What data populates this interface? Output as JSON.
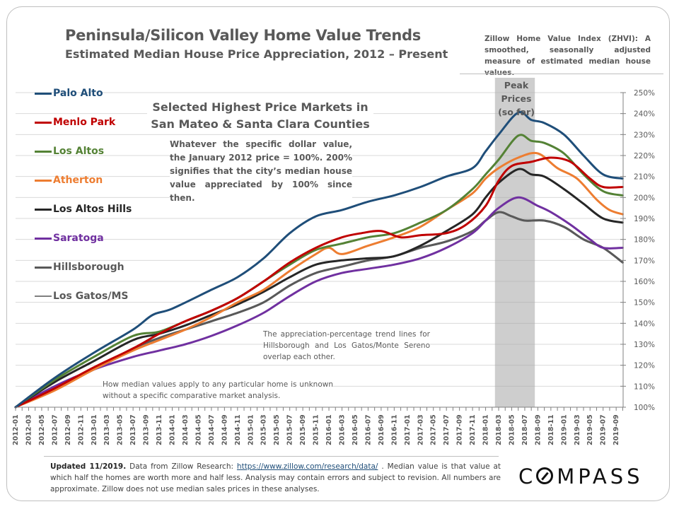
{
  "header": {
    "title": "Peninsula/Silicon Valley Home Value Trends",
    "subtitle": "Estimated Median House Price Appreciation, 2012 – Present",
    "zhvi_note": "Zillow Home Value Index (ZHVI): A smoothed, seasonally adjusted measure of estimated median house values."
  },
  "annotations": {
    "box_title": "Selected Highest Price Markets in San Mateo & Santa Clara Counties",
    "box_body": "Whatever the specific dollar value, the January 2012 price = 100%. 200% signifies that the city’s median house value appreciated by 100% since then.",
    "overlap_note": "The appreciation-percentage trend lines for Hillsborough and Los Gatos/Monte Sereno overlap each other.",
    "median_note": "How median values apply to any particular home is unknown without a specific comparative market analysis.",
    "peak_label_line1": "Peak Prices",
    "peak_label_line2": "(so far)"
  },
  "footer": {
    "updated": "Updated 11/2019.",
    "source_prefix": " Data from Zillow Research: ",
    "source_link": "https://www.zillow.com/research/data/",
    "source_suffix": " . Median value is that value at which half the homes are worth more and half less. Analysis may contain errors and subject to revision. All numbers are approximate. Zillow does not use median sales prices in these analyses.",
    "logo": "COMPASS"
  },
  "chart_data": {
    "type": "line",
    "title": "Peninsula/Silicon Valley Home Value Trends",
    "subtitle": "Estimated Median House Price Appreciation, 2012 – Present",
    "xlabel": "",
    "ylabel": "",
    "ylim": [
      100,
      250
    ],
    "yticks": [
      "100%",
      "110%",
      "120%",
      "130%",
      "140%",
      "150%",
      "160%",
      "170%",
      "180%",
      "190%",
      "200%",
      "210%",
      "220%",
      "230%",
      "240%",
      "250%"
    ],
    "y_axis_side": "right",
    "grid": true,
    "legend_position": "left",
    "x_start": "2012-01",
    "x_end": "2019-10",
    "xtick_labels": [
      "2012-01",
      "2012-03",
      "2012-05",
      "2012-07",
      "2012-09",
      "2012-11",
      "2013-01",
      "2013-03",
      "2013-05",
      "2013-07",
      "2013-09",
      "2013-11",
      "2014-01",
      "2014-03",
      "2014-05",
      "2014-07",
      "2014-09",
      "2014-11",
      "2015-01",
      "2015-03",
      "2015-05",
      "2015-07",
      "2015-09",
      "2015-11",
      "2016-01",
      "2016-03",
      "2016-05",
      "2016-07",
      "2016-09",
      "2016-11",
      "2017-01",
      "2017-03",
      "2017-05",
      "2017-07",
      "2017-09",
      "2017-11",
      "2018-01",
      "2018-03",
      "2018-05",
      "2018-07",
      "2018-09",
      "2018-11",
      "2019-01",
      "2019-03",
      "2019-05",
      "2019-07",
      "2019-09"
    ],
    "shaded_region": {
      "label": "Peak Prices (so far)",
      "from": "2018-02",
      "to": "2018-08",
      "color": "#a6a6a6"
    },
    "series": [
      {
        "name": "Palo Alto",
        "color": "#1f4e79",
        "points": [
          [
            "2012-01",
            100
          ],
          [
            "2012-07",
            114
          ],
          [
            "2013-01",
            126
          ],
          [
            "2013-07",
            137
          ],
          [
            "2013-10",
            144
          ],
          [
            "2014-01",
            147
          ],
          [
            "2014-07",
            156
          ],
          [
            "2014-11",
            162
          ],
          [
            "2015-03",
            171
          ],
          [
            "2015-07",
            183
          ],
          [
            "2015-11",
            191
          ],
          [
            "2016-03",
            194
          ],
          [
            "2016-07",
            198
          ],
          [
            "2016-11",
            201
          ],
          [
            "2017-03",
            205
          ],
          [
            "2017-07",
            210
          ],
          [
            "2017-11",
            214
          ],
          [
            "2018-01",
            222
          ],
          [
            "2018-03",
            230
          ],
          [
            "2018-06",
            240.5
          ],
          [
            "2018-08",
            237
          ],
          [
            "2018-10",
            235.5
          ],
          [
            "2019-01",
            230
          ],
          [
            "2019-04",
            220
          ],
          [
            "2019-07",
            211
          ],
          [
            "2019-10",
            209
          ]
        ]
      },
      {
        "name": "Menlo Park",
        "color": "#c00000",
        "points": [
          [
            "2012-01",
            100
          ],
          [
            "2012-07",
            109
          ],
          [
            "2013-01",
            119
          ],
          [
            "2013-07",
            128
          ],
          [
            "2013-11",
            135
          ],
          [
            "2014-03",
            141
          ],
          [
            "2014-07",
            146
          ],
          [
            "2014-11",
            152
          ],
          [
            "2015-03",
            160
          ],
          [
            "2015-07",
            169
          ],
          [
            "2015-11",
            176
          ],
          [
            "2016-03",
            181
          ],
          [
            "2016-06",
            183
          ],
          [
            "2016-09",
            184
          ],
          [
            "2016-12",
            181
          ],
          [
            "2017-03",
            182
          ],
          [
            "2017-07",
            183
          ],
          [
            "2017-10",
            187
          ],
          [
            "2018-01",
            196
          ],
          [
            "2018-03",
            208
          ],
          [
            "2018-05",
            215
          ],
          [
            "2018-08",
            217
          ],
          [
            "2018-11",
            219
          ],
          [
            "2019-02",
            217
          ],
          [
            "2019-05",
            209
          ],
          [
            "2019-07",
            205
          ],
          [
            "2019-10",
            205
          ]
        ]
      },
      {
        "name": "Los Altos",
        "color": "#548235",
        "points": [
          [
            "2012-01",
            100
          ],
          [
            "2012-07",
            113
          ],
          [
            "2013-01",
            124
          ],
          [
            "2013-07",
            134
          ],
          [
            "2013-11",
            136
          ],
          [
            "2014-03",
            141
          ],
          [
            "2014-07",
            146
          ],
          [
            "2014-11",
            152
          ],
          [
            "2015-03",
            160
          ],
          [
            "2015-07",
            168
          ],
          [
            "2015-11",
            175
          ],
          [
            "2016-03",
            178
          ],
          [
            "2016-07",
            181
          ],
          [
            "2016-11",
            183
          ],
          [
            "2017-03",
            188
          ],
          [
            "2017-07",
            194
          ],
          [
            "2017-11",
            204
          ],
          [
            "2018-01",
            211
          ],
          [
            "2018-03",
            218
          ],
          [
            "2018-06",
            229.5
          ],
          [
            "2018-08",
            227
          ],
          [
            "2018-10",
            226
          ],
          [
            "2019-01",
            221
          ],
          [
            "2019-04",
            211
          ],
          [
            "2019-07",
            203
          ],
          [
            "2019-10",
            201
          ]
        ]
      },
      {
        "name": "Atherton",
        "color": "#ed7d31",
        "points": [
          [
            "2012-01",
            100
          ],
          [
            "2012-07",
            108
          ],
          [
            "2013-01",
            118
          ],
          [
            "2013-07",
            127
          ],
          [
            "2013-11",
            132
          ],
          [
            "2014-03",
            137
          ],
          [
            "2014-07",
            143
          ],
          [
            "2014-11",
            150
          ],
          [
            "2015-03",
            156
          ],
          [
            "2015-07",
            165
          ],
          [
            "2015-11",
            173
          ],
          [
            "2016-01",
            176
          ],
          [
            "2016-03",
            173
          ],
          [
            "2016-07",
            177
          ],
          [
            "2016-11",
            181
          ],
          [
            "2017-03",
            186
          ],
          [
            "2017-07",
            194
          ],
          [
            "2017-11",
            202
          ],
          [
            "2018-01",
            209
          ],
          [
            "2018-03",
            214
          ],
          [
            "2018-06",
            219
          ],
          [
            "2018-09",
            221
          ],
          [
            "2018-12",
            214
          ],
          [
            "2019-03",
            209
          ],
          [
            "2019-06",
            199
          ],
          [
            "2019-08",
            194
          ],
          [
            "2019-10",
            192
          ]
        ]
      },
      {
        "name": "Los Altos Hills",
        "color": "#262626",
        "points": [
          [
            "2012-01",
            100
          ],
          [
            "2012-07",
            112
          ],
          [
            "2013-01",
            122
          ],
          [
            "2013-07",
            132
          ],
          [
            "2013-11",
            135
          ],
          [
            "2014-03",
            139
          ],
          [
            "2014-07",
            144
          ],
          [
            "2014-11",
            149
          ],
          [
            "2015-03",
            155
          ],
          [
            "2015-07",
            162
          ],
          [
            "2015-11",
            168
          ],
          [
            "2016-03",
            170
          ],
          [
            "2016-07",
            171
          ],
          [
            "2016-11",
            172
          ],
          [
            "2017-03",
            177
          ],
          [
            "2017-07",
            184
          ],
          [
            "2017-11",
            192
          ],
          [
            "2018-01",
            200
          ],
          [
            "2018-03",
            207
          ],
          [
            "2018-06",
            213.5
          ],
          [
            "2018-08",
            211
          ],
          [
            "2018-10",
            210
          ],
          [
            "2019-01",
            204
          ],
          [
            "2019-04",
            197
          ],
          [
            "2019-07",
            190
          ],
          [
            "2019-10",
            188
          ]
        ]
      },
      {
        "name": "Saratoga",
        "color": "#7030a0",
        "points": [
          [
            "2012-01",
            100
          ],
          [
            "2012-07",
            110
          ],
          [
            "2013-01",
            118
          ],
          [
            "2013-07",
            124
          ],
          [
            "2013-11",
            127
          ],
          [
            "2014-03",
            130
          ],
          [
            "2014-07",
            134
          ],
          [
            "2014-11",
            139
          ],
          [
            "2015-03",
            145
          ],
          [
            "2015-07",
            153
          ],
          [
            "2015-11",
            160
          ],
          [
            "2016-03",
            164
          ],
          [
            "2016-07",
            166
          ],
          [
            "2016-11",
            168
          ],
          [
            "2017-03",
            171
          ],
          [
            "2017-07",
            176
          ],
          [
            "2017-11",
            183
          ],
          [
            "2018-01",
            189
          ],
          [
            "2018-03",
            195
          ],
          [
            "2018-06",
            200
          ],
          [
            "2018-09",
            196
          ],
          [
            "2018-11",
            193
          ],
          [
            "2019-02",
            187
          ],
          [
            "2019-05",
            180
          ],
          [
            "2019-07",
            176
          ],
          [
            "2019-10",
            176
          ]
        ]
      },
      {
        "name": "Hillsborough",
        "color": "#595959",
        "points": [
          [
            "2012-01",
            100
          ],
          [
            "2012-07",
            109
          ],
          [
            "2013-01",
            118
          ],
          [
            "2013-07",
            128
          ],
          [
            "2013-11",
            133
          ],
          [
            "2014-03",
            137
          ],
          [
            "2014-07",
            141
          ],
          [
            "2014-11",
            145
          ],
          [
            "2015-03",
            150
          ],
          [
            "2015-07",
            158
          ],
          [
            "2015-11",
            164
          ],
          [
            "2016-03",
            167
          ],
          [
            "2016-07",
            170
          ],
          [
            "2016-11",
            172
          ],
          [
            "2017-03",
            176
          ],
          [
            "2017-07",
            179
          ],
          [
            "2017-11",
            184
          ],
          [
            "2018-01",
            189
          ],
          [
            "2018-03",
            193
          ],
          [
            "2018-05",
            191
          ],
          [
            "2018-07",
            189
          ],
          [
            "2018-10",
            189
          ],
          [
            "2019-01",
            186
          ],
          [
            "2019-04",
            180
          ],
          [
            "2019-07",
            176
          ],
          [
            "2019-10",
            169
          ]
        ]
      },
      {
        "name": "Los Gatos/MS",
        "color": "#7f7f7f",
        "points": [
          [
            "2012-01",
            100
          ],
          [
            "2012-07",
            109
          ],
          [
            "2013-01",
            118
          ],
          [
            "2013-07",
            128
          ],
          [
            "2013-11",
            133
          ],
          [
            "2014-03",
            137
          ],
          [
            "2014-07",
            141
          ],
          [
            "2014-11",
            145
          ],
          [
            "2015-03",
            150
          ],
          [
            "2015-07",
            158
          ],
          [
            "2015-11",
            164
          ],
          [
            "2016-03",
            167
          ],
          [
            "2016-07",
            170
          ],
          [
            "2016-11",
            172
          ],
          [
            "2017-03",
            176
          ],
          [
            "2017-07",
            179
          ],
          [
            "2017-11",
            184
          ],
          [
            "2018-01",
            189
          ],
          [
            "2018-03",
            193
          ],
          [
            "2018-05",
            191
          ],
          [
            "2018-07",
            189
          ],
          [
            "2018-10",
            189
          ],
          [
            "2019-01",
            186
          ],
          [
            "2019-04",
            180
          ],
          [
            "2019-07",
            176
          ],
          [
            "2019-10",
            169
          ]
        ]
      }
    ]
  }
}
